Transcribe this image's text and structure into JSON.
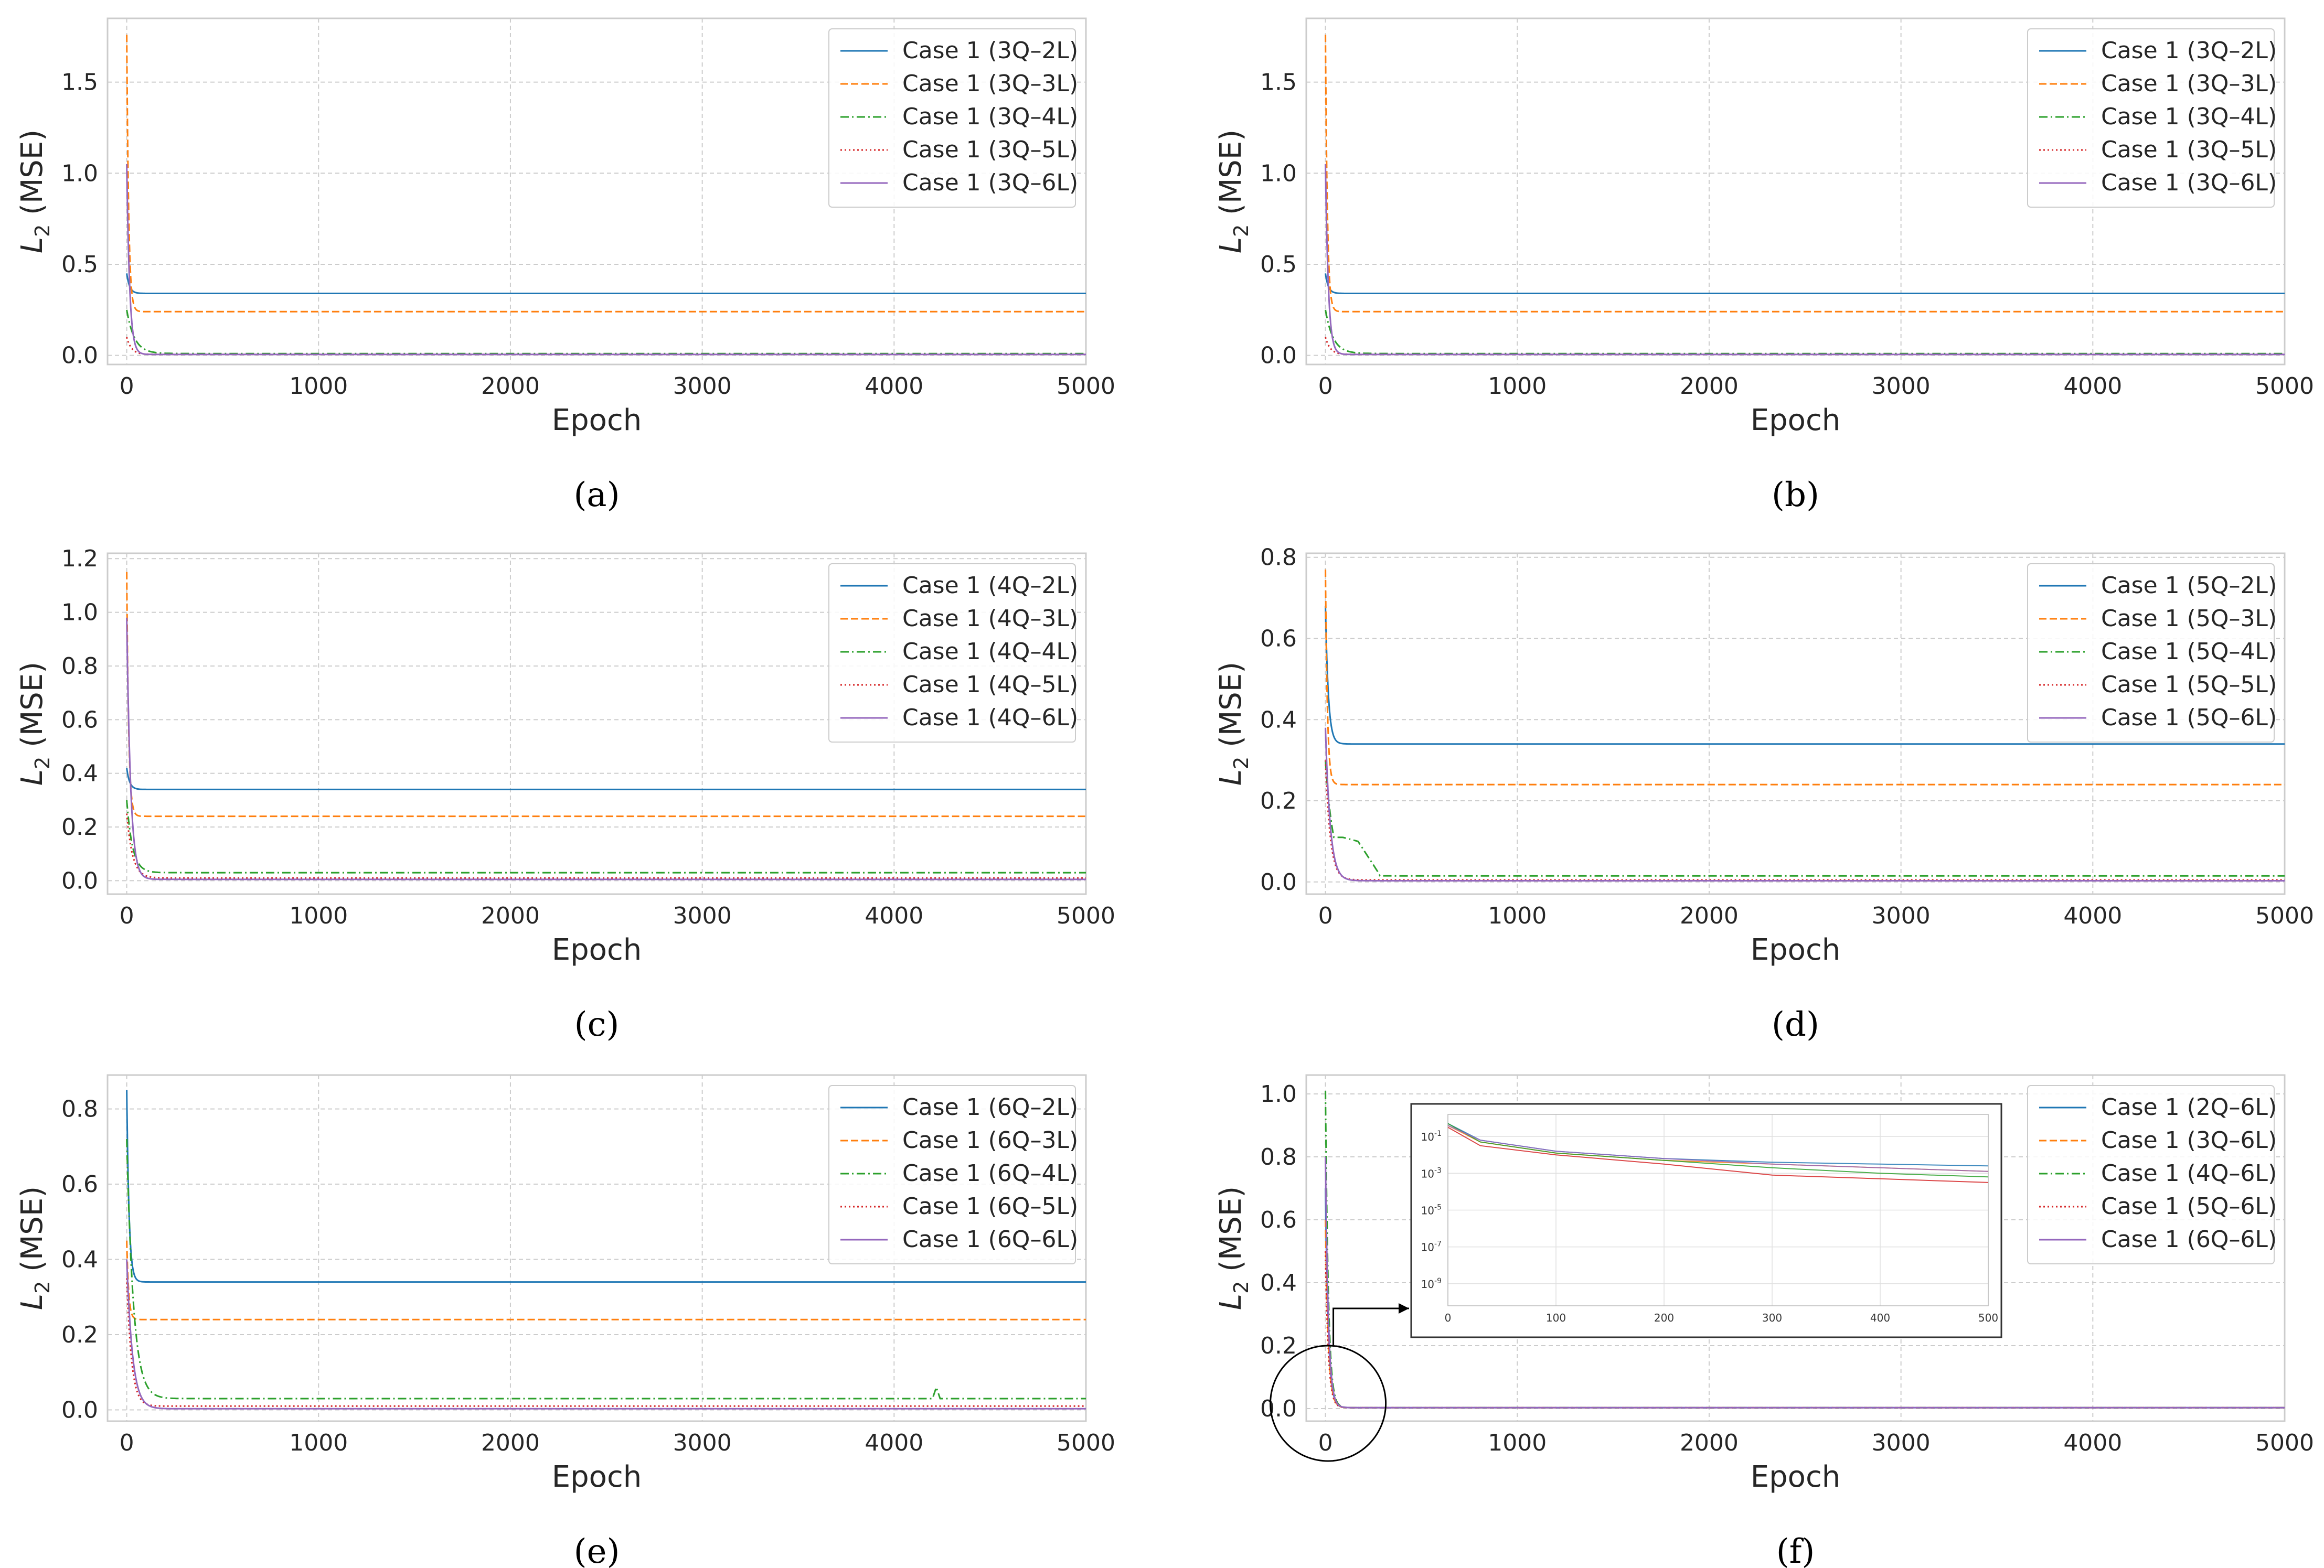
{
  "colors": {
    "s1": "#1f77b4",
    "s2": "#ff7f0e",
    "s3": "#2ca02c",
    "s4": "#d62728",
    "s5": "#9467bd",
    "grid": "#cccccc",
    "axes": "#cccccc",
    "text": "#262626"
  },
  "chart_data": [
    {
      "type": "line",
      "caption": "(a)",
      "xlabel": "Epoch",
      "ylabel_main": "L",
      "ylabel_sub": "2",
      "ylabel_rest": " (MSE)",
      "xlim": [
        -100,
        5000
      ],
      "ylim": [
        -0.05,
        1.85
      ],
      "xticks": [
        0,
        1000,
        2000,
        3000,
        4000,
        5000
      ],
      "xtick_labels": [
        "0",
        "1000",
        "2000",
        "3000",
        "4000",
        "5000"
      ],
      "yticks": [
        0,
        0.5,
        1.0,
        1.5
      ],
      "ytick_labels": [
        "0.0",
        "0.5",
        "1.0",
        "1.5"
      ],
      "series": [
        {
          "name": "Case 1 (3Q–2L)",
          "style": "solid",
          "start": 0.45,
          "tau": 15,
          "final": 0.34
        },
        {
          "name": "Case 1 (3Q–3L)",
          "style": "dashed",
          "start": 1.76,
          "tau": 10,
          "final": 0.24
        },
        {
          "name": "Case 1 (3Q–4L)",
          "style": "dashdot",
          "start": 0.25,
          "tau": 40,
          "final": 0.01
        },
        {
          "name": "Case 1 (3Q–5L)",
          "style": "dotted",
          "start": 0.1,
          "tau": 25,
          "final": 0.005
        },
        {
          "name": "Case 1 (3Q–6L)",
          "style": "solid",
          "start": 1.05,
          "tau": 15,
          "final": 0.005
        }
      ]
    },
    {
      "type": "line",
      "caption": "(b)",
      "xlabel": "Epoch",
      "ylabel_main": "L",
      "ylabel_sub": "2",
      "ylabel_rest": " (MSE)",
      "xlim": [
        -100,
        5000
      ],
      "ylim": [
        -0.05,
        1.85
      ],
      "xticks": [
        0,
        1000,
        2000,
        3000,
        4000,
        5000
      ],
      "xtick_labels": [
        "0",
        "1000",
        "2000",
        "3000",
        "4000",
        "5000"
      ],
      "yticks": [
        0,
        0.5,
        1.0,
        1.5
      ],
      "ytick_labels": [
        "0.0",
        "0.5",
        "1.0",
        "1.5"
      ],
      "series": [
        {
          "name": "Case 1 (3Q–2L)",
          "style": "solid",
          "start": 0.45,
          "tau": 15,
          "final": 0.34
        },
        {
          "name": "Case 1 (3Q–3L)",
          "style": "dashed",
          "start": 1.76,
          "tau": 10,
          "final": 0.24
        },
        {
          "name": "Case 1 (3Q–4L)",
          "style": "dashdot",
          "start": 0.25,
          "tau": 40,
          "final": 0.01
        },
        {
          "name": "Case 1 (3Q–5L)",
          "style": "dotted",
          "start": 0.1,
          "tau": 25,
          "final": 0.005
        },
        {
          "name": "Case 1 (3Q–6L)",
          "style": "solid",
          "start": 1.05,
          "tau": 15,
          "final": 0.005
        }
      ]
    },
    {
      "type": "line",
      "caption": "(c)",
      "xlabel": "Epoch",
      "ylabel_main": "L",
      "ylabel_sub": "2",
      "ylabel_rest": " (MSE)",
      "xlim": [
        -100,
        5000
      ],
      "ylim": [
        -0.05,
        1.22
      ],
      "xticks": [
        0,
        1000,
        2000,
        3000,
        4000,
        5000
      ],
      "xtick_labels": [
        "0",
        "1000",
        "2000",
        "3000",
        "4000",
        "5000"
      ],
      "yticks": [
        0,
        0.2,
        0.4,
        0.6,
        0.8,
        1.0,
        1.2
      ],
      "ytick_labels": [
        "0.0",
        "0.2",
        "0.4",
        "0.6",
        "0.8",
        "1.0",
        "1.2"
      ],
      "series": [
        {
          "name": "Case 1 (4Q–2L)",
          "style": "solid",
          "start": 0.42,
          "tau": 15,
          "final": 0.34
        },
        {
          "name": "Case 1 (4Q–3L)",
          "style": "dashed",
          "start": 1.15,
          "tau": 10,
          "final": 0.24
        },
        {
          "name": "Case 1 (4Q–4L)",
          "style": "dashdot",
          "start": 0.3,
          "tau": 30,
          "final": 0.03
        },
        {
          "name": "Case 1 (4Q–5L)",
          "style": "dotted",
          "start": 0.25,
          "tau": 30,
          "final": 0.01
        },
        {
          "name": "Case 1 (4Q–6L)",
          "style": "solid",
          "start": 0.98,
          "tau": 20,
          "final": 0.005
        }
      ]
    },
    {
      "type": "line",
      "caption": "(d)",
      "xlabel": "Epoch",
      "ylabel_main": "L",
      "ylabel_sub": "2",
      "ylabel_rest": " (MSE)",
      "xlim": [
        -100,
        5000
      ],
      "ylim": [
        -0.03,
        0.81
      ],
      "xticks": [
        0,
        1000,
        2000,
        3000,
        4000,
        5000
      ],
      "xtick_labels": [
        "0",
        "1000",
        "2000",
        "3000",
        "4000",
        "5000"
      ],
      "yticks": [
        0,
        0.2,
        0.4,
        0.6,
        0.8
      ],
      "ytick_labels": [
        "0.0",
        "0.2",
        "0.4",
        "0.6",
        "0.8"
      ],
      "series": [
        {
          "name": "Case 1 (5Q–2L)",
          "style": "solid",
          "start": 0.68,
          "tau": 15,
          "final": 0.34
        },
        {
          "name": "Case 1 (5Q–3L)",
          "style": "dashed",
          "start": 0.77,
          "tau": 10,
          "final": 0.24
        },
        {
          "name": "Case 1 (5Q–4L)",
          "style": "dashdot",
          "start": 0.3,
          "tau": 40,
          "final": 0.015,
          "plateau": [
            [
              90,
              0.11
            ],
            [
              170,
              0.1
            ],
            [
              280,
              0.02
            ]
          ]
        },
        {
          "name": "Case 1 (5Q–5L)",
          "style": "dotted",
          "start": 0.3,
          "tau": 25,
          "final": 0.005
        },
        {
          "name": "Case 1 (5Q–6L)",
          "style": "solid",
          "start": 0.38,
          "tau": 25,
          "final": 0.003
        }
      ]
    },
    {
      "type": "line",
      "caption": "(e)",
      "xlabel": "Epoch",
      "ylabel_main": "L",
      "ylabel_sub": "2",
      "ylabel_rest": " (MSE)",
      "xlim": [
        -100,
        5000
      ],
      "ylim": [
        -0.03,
        0.89
      ],
      "xticks": [
        0,
        1000,
        2000,
        3000,
        4000,
        5000
      ],
      "xtick_labels": [
        "0",
        "1000",
        "2000",
        "3000",
        "4000",
        "5000"
      ],
      "yticks": [
        0,
        0.2,
        0.4,
        0.6,
        0.8
      ],
      "ytick_labels": [
        "0.0",
        "0.2",
        "0.4",
        "0.6",
        "0.8"
      ],
      "series": [
        {
          "name": "Case 1 (6Q–2L)",
          "style": "solid",
          "start": 0.85,
          "tau": 12,
          "final": 0.34
        },
        {
          "name": "Case 1 (6Q–3L)",
          "style": "dashed",
          "start": 0.45,
          "tau": 10,
          "final": 0.24
        },
        {
          "name": "Case 1 (6Q–4L)",
          "style": "dashdot",
          "start": 0.72,
          "tau": 35,
          "final": 0.03,
          "spike": [
            4220,
            0.06
          ]
        },
        {
          "name": "Case 1 (6Q–5L)",
          "style": "dotted",
          "start": 0.35,
          "tau": 25,
          "final": 0.01
        },
        {
          "name": "Case 1 (6Q–6L)",
          "style": "solid",
          "start": 0.4,
          "tau": 30,
          "final": 0.003
        }
      ]
    },
    {
      "type": "line",
      "caption": "(f)",
      "xlabel": "Epoch",
      "ylabel_main": "L",
      "ylabel_sub": "2",
      "ylabel_rest": " (MSE)",
      "xlim": [
        -100,
        5000
      ],
      "ylim": [
        -0.04,
        1.06
      ],
      "xticks": [
        0,
        1000,
        2000,
        3000,
        4000,
        5000
      ],
      "xtick_labels": [
        "0",
        "1000",
        "2000",
        "3000",
        "4000",
        "5000"
      ],
      "yticks": [
        0,
        0.2,
        0.4,
        0.6,
        0.8,
        1.0
      ],
      "ytick_labels": [
        "0.0",
        "0.2",
        "0.4",
        "0.6",
        "0.8",
        "1.0"
      ],
      "series": [
        {
          "name": "Case 1 (2Q–6L)",
          "style": "solid",
          "start": 0.7,
          "tau": 15,
          "final": 0.003
        },
        {
          "name": "Case 1 (3Q–6L)",
          "style": "dashed",
          "start": 0.6,
          "tau": 15,
          "final": 0.003
        },
        {
          "name": "Case 1 (4Q–6L)",
          "style": "dashdot",
          "start": 1.01,
          "tau": 15,
          "final": 0.003
        },
        {
          "name": "Case 1 (5Q–6L)",
          "style": "dotted",
          "start": 0.5,
          "tau": 15,
          "final": 0.003
        },
        {
          "name": "Case 1 (6Q–6L)",
          "style": "solid",
          "start": 0.8,
          "tau": 15,
          "final": 0.003
        }
      ],
      "inset": {
        "type": "line",
        "scale": "log",
        "xlim": [
          0,
          500
        ],
        "xticks": [
          0,
          100,
          200,
          300,
          400,
          500
        ],
        "xtick_labels": [
          "0",
          "100",
          "200",
          "300",
          "400",
          "500"
        ],
        "ytick_base": "10",
        "ytick_exponents": [
          "-1",
          "-3",
          "-5",
          "-7",
          "-9"
        ],
        "ylim_log10": [
          -10.2,
          0.2
        ],
        "series_log10": [
          {
            "name": "2Q–6L",
            "points": [
              [
                0,
                -0.3
              ],
              [
                30,
                -1.2
              ],
              [
                100,
                -1.8
              ],
              [
                200,
                -2.2
              ],
              [
                300,
                -2.4
              ],
              [
                400,
                -2.5
              ],
              [
                500,
                -2.6
              ]
            ]
          },
          {
            "name": "3Q–6L",
            "points": [
              [
                0,
                -0.4
              ],
              [
                30,
                -1.3
              ],
              [
                100,
                -1.9
              ],
              [
                200,
                -2.3
              ],
              [
                300,
                -2.5
              ],
              [
                400,
                -2.7
              ],
              [
                500,
                -2.9
              ]
            ]
          },
          {
            "name": "4Q–6L",
            "points": [
              [
                0,
                -0.3
              ],
              [
                30,
                -1.3
              ],
              [
                100,
                -1.9
              ],
              [
                200,
                -2.3
              ],
              [
                300,
                -2.7
              ],
              [
                400,
                -3.0
              ],
              [
                500,
                -3.2
              ]
            ]
          },
          {
            "name": "5Q–6L",
            "points": [
              [
                0,
                -0.5
              ],
              [
                30,
                -1.5
              ],
              [
                100,
                -2.0
              ],
              [
                200,
                -2.5
              ],
              [
                300,
                -3.1
              ],
              [
                400,
                -3.3
              ],
              [
                500,
                -3.5
              ]
            ]
          },
          {
            "name": "6Q–6L",
            "points": [
              [
                0,
                -0.4
              ],
              [
                30,
                -1.2
              ],
              [
                100,
                -1.8
              ],
              [
                200,
                -2.2
              ],
              [
                300,
                -2.5
              ],
              [
                400,
                -2.7
              ],
              [
                500,
                -2.9
              ]
            ]
          }
        ]
      }
    }
  ]
}
